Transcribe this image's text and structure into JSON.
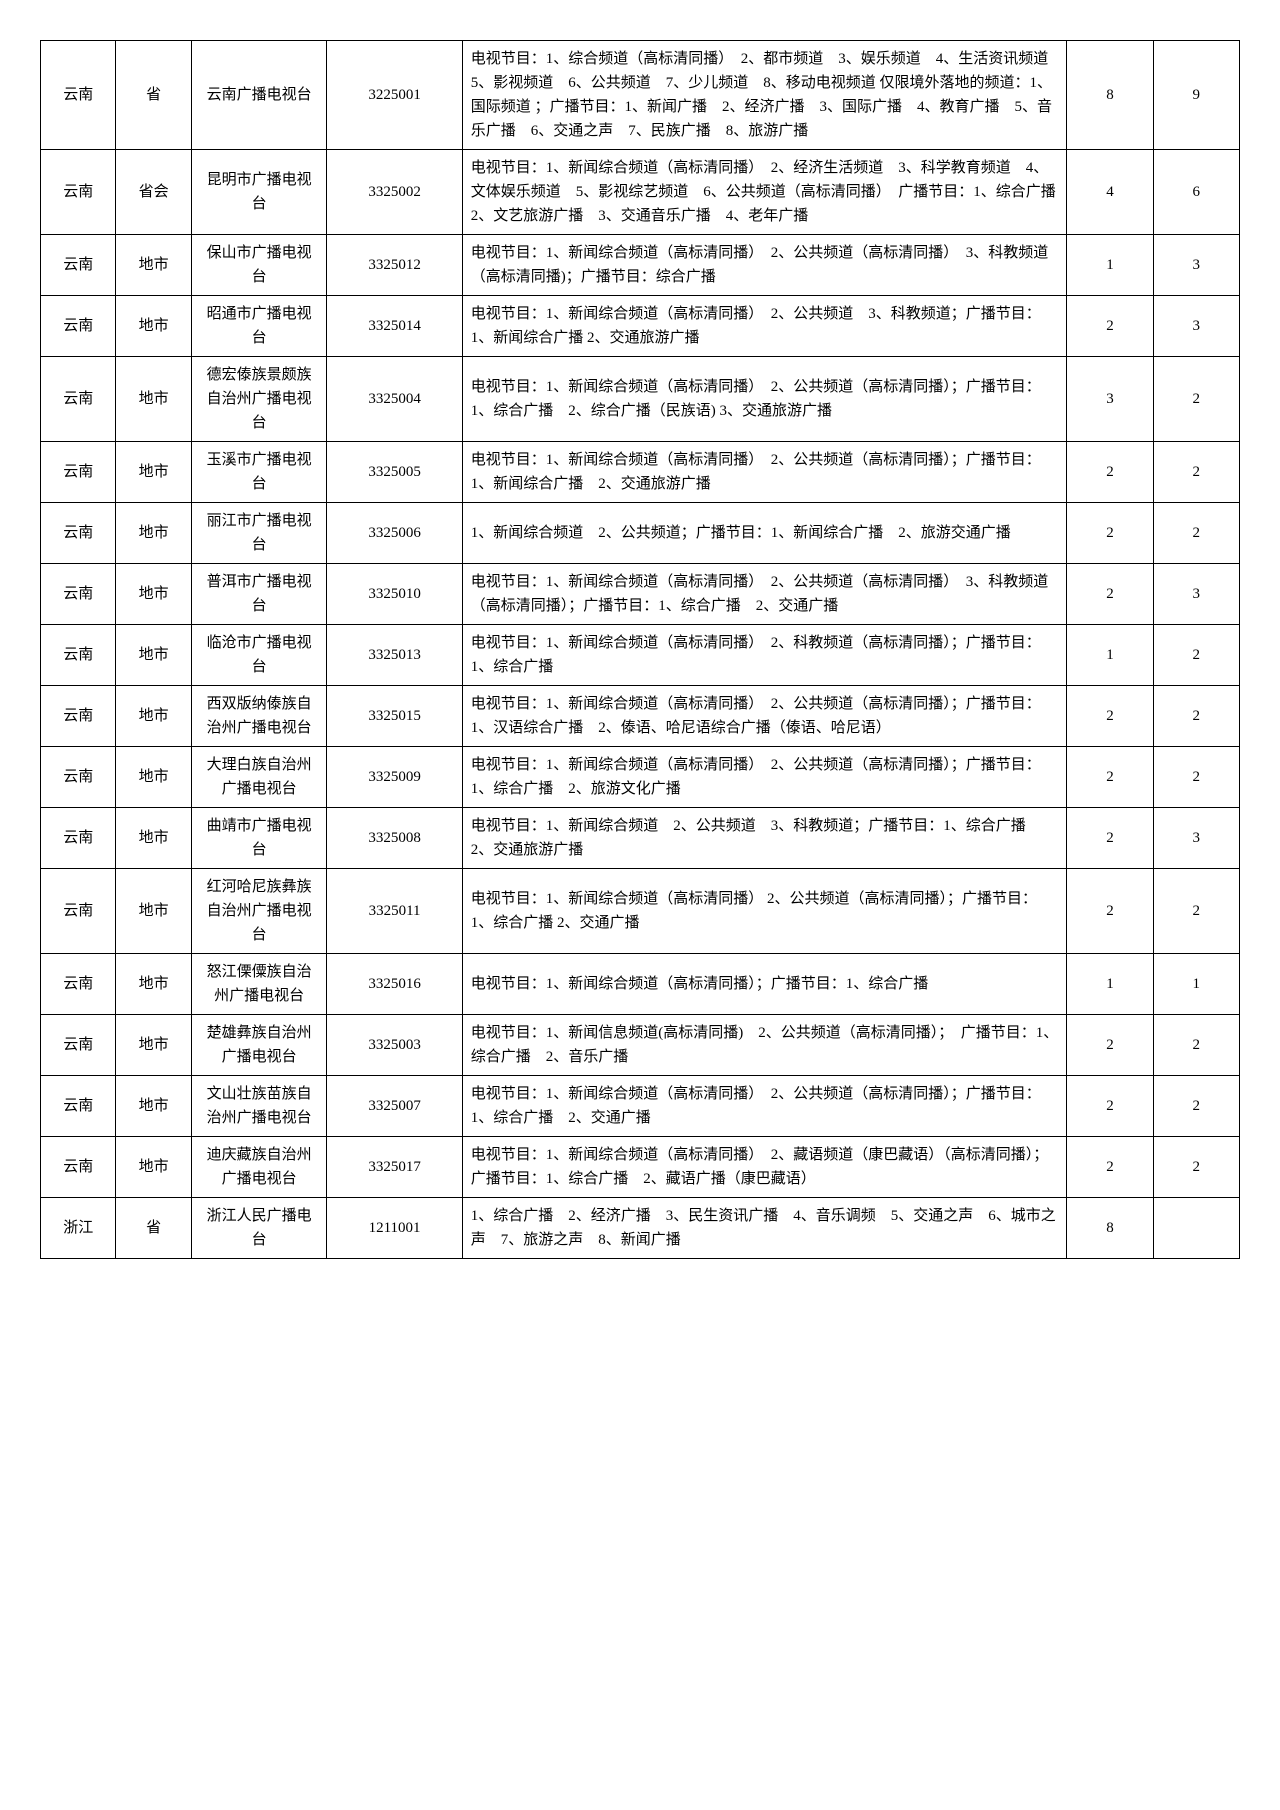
{
  "rows": [
    {
      "prov": "云南",
      "level": "省",
      "name": "云南广播电视台",
      "code": "3225001",
      "desc": "电视节目：1、综合频道（高标清同播）　2、都市频道　3、娱乐频道　4、生活资讯频道　5、影视频道　6、公共频道　7、少儿频道　8、移动电视频道 仅限境外落地的频道：1、国际频道 ；广播节目：1、新闻广播　2、经济广播　3、国际广播　4、教育广播　5、音乐广播　6、交通之声　7、民族广播　8、旅游广播",
      "n1": "8",
      "n2": "9"
    },
    {
      "prov": "云南",
      "level": "省会",
      "name": "昆明市广播电视台",
      "code": "3325002",
      "desc": "电视节目：1、新闻综合频道（高标清同播）　2、经济生活频道　3、科学教育频道　4、文体娱乐频道　5、影视综艺频道　6、公共频道（高标清同播）　广播节目：1、综合广播　2、文艺旅游广播　3、交通音乐广播　4、老年广播",
      "n1": "4",
      "n2": "6"
    },
    {
      "prov": "云南",
      "level": "地市",
      "name": "保山市广播电视台",
      "code": "3325012",
      "desc": "电视节目：1、新闻综合频道（高标清同播）　2、公共频道（高标清同播）　3、科教频道（高标清同播)；广播节目：综合广播",
      "n1": "1",
      "n2": "3"
    },
    {
      "prov": "云南",
      "level": "地市",
      "name": "昭通市广播电视台",
      "code": "3325014",
      "desc": "电视节目：1、新闻综合频道（高标清同播）　2、公共频道　3、科教频道；广播节目：1、新闻综合广播 2、交通旅游广播",
      "n1": "2",
      "n2": "3"
    },
    {
      "prov": "云南",
      "level": "地市",
      "name": "德宏傣族景颇族自治州广播电视台",
      "code": "3325004",
      "desc": "电视节目：1、新闻综合频道（高标清同播）　2、公共频道（高标清同播）；广播节目：1、综合广播　2、综合广播（民族语) 3、交通旅游广播",
      "n1": "3",
      "n2": "2"
    },
    {
      "prov": "云南",
      "level": "地市",
      "name": "玉溪市广播电视台",
      "code": "3325005",
      "desc": "电视节目：1、新闻综合频道（高标清同播）　2、公共频道（高标清同播）；广播节目：1、新闻综合广播　2、交通旅游广播",
      "n1": "2",
      "n2": "2"
    },
    {
      "prov": "云南",
      "level": "地市",
      "name": "丽江市广播电视台",
      "code": "3325006",
      "desc": "1、新闻综合频道　2、公共频道；广播节目：1、新闻综合广播　2、旅游交通广播",
      "n1": "2",
      "n2": "2"
    },
    {
      "prov": "云南",
      "level": "地市",
      "name": "普洱市广播电视台",
      "code": "3325010",
      "desc": "电视节目：1、新闻综合频道（高标清同播）　2、公共频道（高标清同播）　3、科教频道（高标清同播）；广播节目：1、综合广播　2、交通广播",
      "n1": "2",
      "n2": "3"
    },
    {
      "prov": "云南",
      "level": "地市",
      "name": "临沧市广播电视台",
      "code": "3325013",
      "desc": "电视节目：1、新闻综合频道（高标清同播）　2、科教频道（高标清同播）；广播节目：1、综合广播",
      "n1": "1",
      "n2": "2"
    },
    {
      "prov": "云南",
      "level": "地市",
      "name": "西双版纳傣族自治州广播电视台",
      "code": "3325015",
      "desc": "电视节目：1、新闻综合频道（高标清同播）　2、公共频道（高标清同播）；广播节目：1、汉语综合广播　2、傣语、哈尼语综合广播（傣语、哈尼语）",
      "n1": "2",
      "n2": "2"
    },
    {
      "prov": "云南",
      "level": "地市",
      "name": "大理白族自治州广播电视台",
      "code": "3325009",
      "desc": "电视节目：1、新闻综合频道（高标清同播）　2、公共频道（高标清同播）；广播节目：1、综合广播　2、旅游文化广播",
      "n1": "2",
      "n2": "2"
    },
    {
      "prov": "云南",
      "level": "地市",
      "name": "曲靖市广播电视台",
      "code": "3325008",
      "desc": "电视节目：1、新闻综合频道　2、公共频道　3、科教频道；广播节目：1、综合广播　2、交通旅游广播",
      "n1": "2",
      "n2": "3"
    },
    {
      "prov": "云南",
      "level": "地市",
      "name": "红河哈尼族彝族自治州广播电视台",
      "code": "3325011",
      "desc": "电视节目：1、新闻综合频道（高标清同播） 2、公共频道（高标清同播）；广播节目：1、综合广播 2、交通广播",
      "n1": "2",
      "n2": "2"
    },
    {
      "prov": "云南",
      "level": "地市",
      "name": "怒江傈僳族自治州广播电视台",
      "code": "3325016",
      "desc": "电视节目：1、新闻综合频道（高标清同播）；广播节目：1、综合广播",
      "n1": "1",
      "n2": "1"
    },
    {
      "prov": "云南",
      "level": "地市",
      "name": "楚雄彝族自治州广播电视台",
      "code": "3325003",
      "desc": "电视节目：1、新闻信息频道(高标清同播)　2、公共频道（高标清同播）；　广播节目：1、综合广播　2、音乐广播",
      "n1": "2",
      "n2": "2"
    },
    {
      "prov": "云南",
      "level": "地市",
      "name": "文山壮族苗族自治州广播电视台",
      "code": "3325007",
      "desc": "电视节目：1、新闻综合频道（高标清同播）　2、公共频道（高标清同播）；广播节目：1、综合广播　2、交通广播",
      "n1": "2",
      "n2": "2"
    },
    {
      "prov": "云南",
      "level": "地市",
      "name": "迪庆藏族自治州广播电视台",
      "code": "3325017",
      "desc": "电视节目：1、新闻综合频道（高标清同播）　2、藏语频道（康巴藏语）（高标清同播）；广播节目：1、综合广播　2、藏语广播（康巴藏语）",
      "n1": "2",
      "n2": "2"
    },
    {
      "prov": "浙江",
      "level": "省",
      "name": "浙江人民广播电台",
      "code": "1211001",
      "desc": "1、综合广播　2、经济广播　3、民生资讯广播　4、音乐调频　5、交通之声　6、城市之声　7、旅游之声　8、新闻广播",
      "n1": "8",
      "n2": ""
    }
  ]
}
